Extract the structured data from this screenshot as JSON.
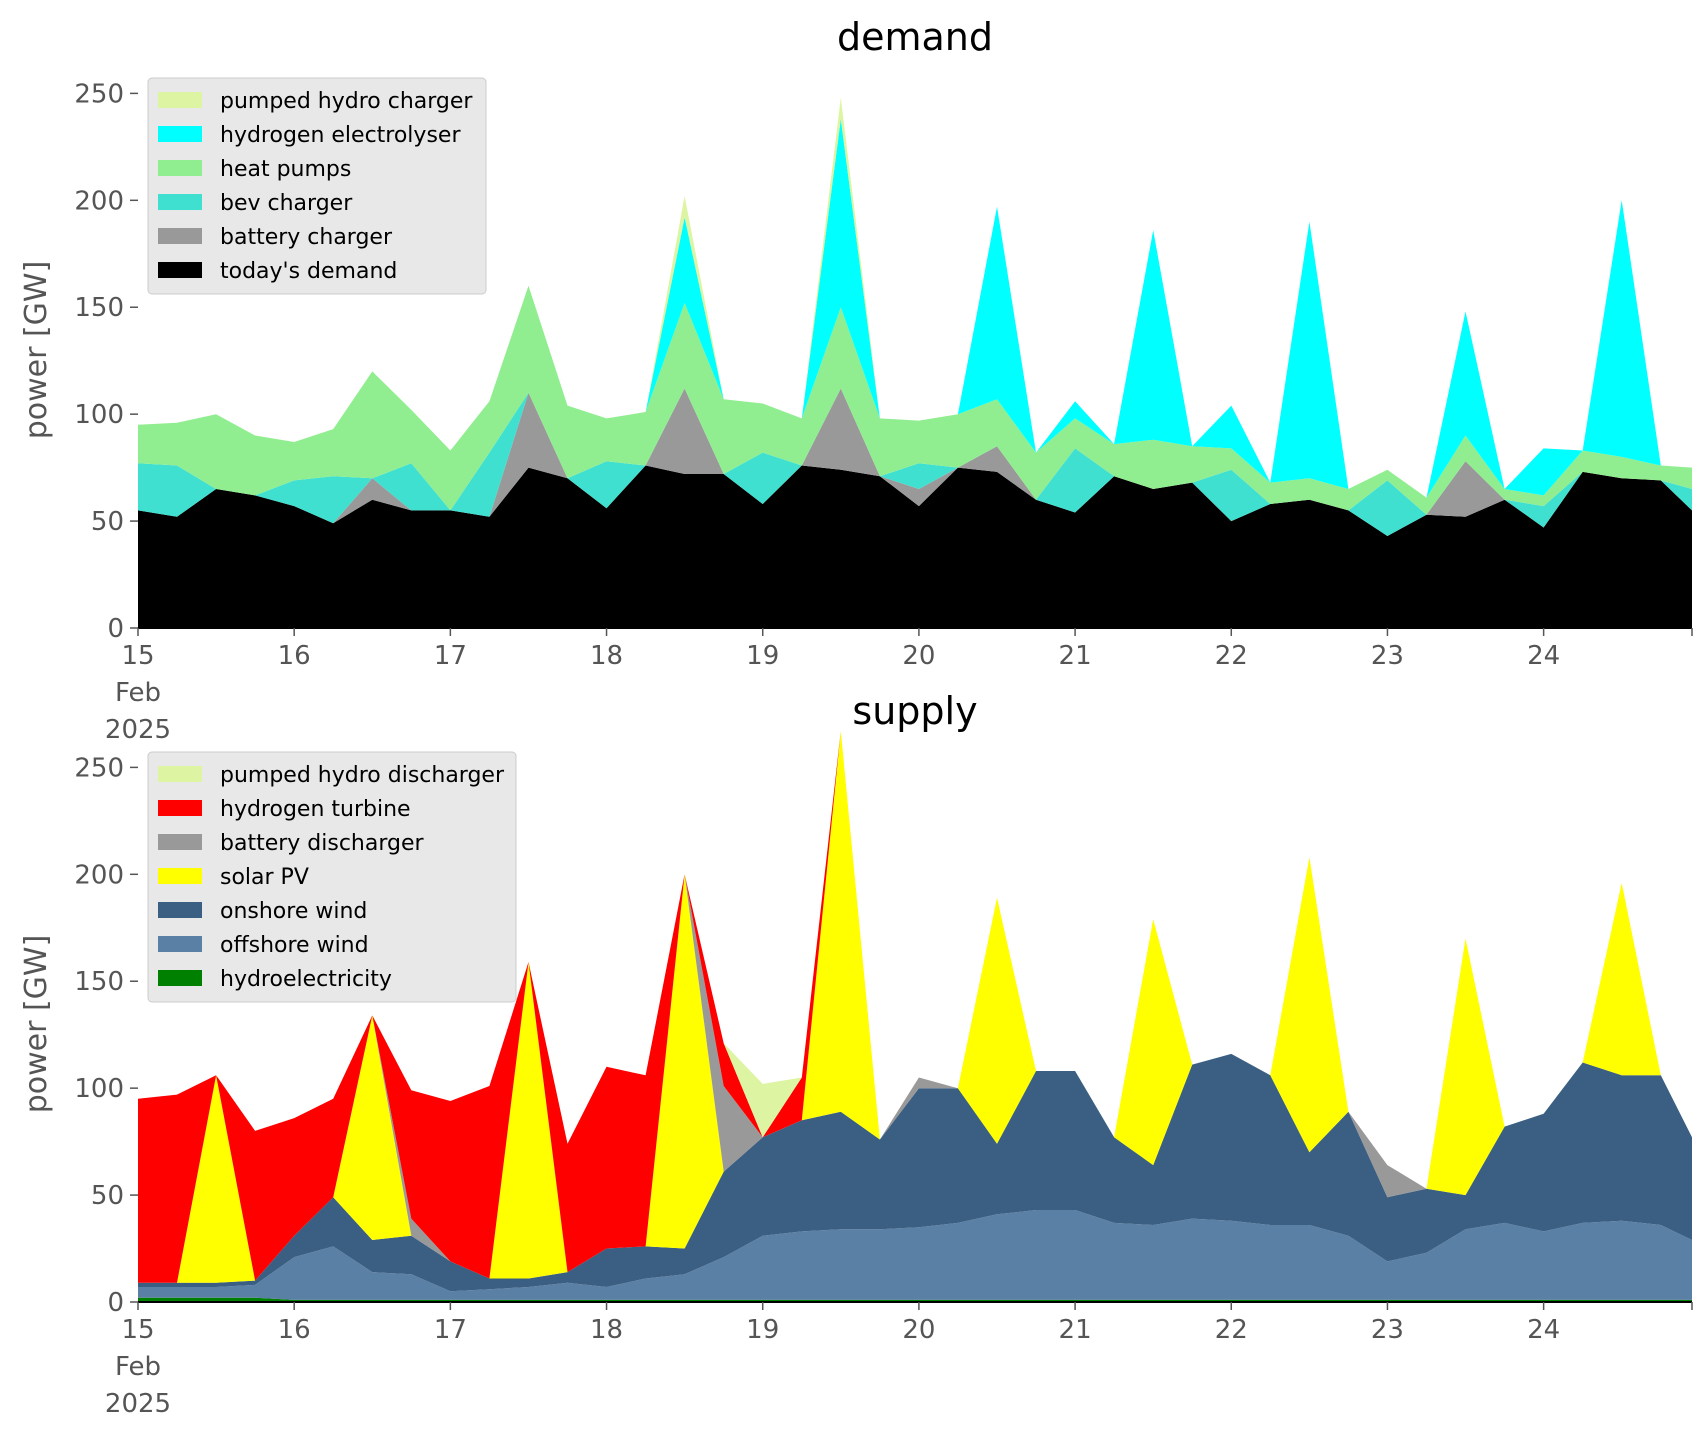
{
  "chart_data": [
    {
      "type": "area",
      "stacked": true,
      "title": "demand",
      "ylabel": "power [GW]",
      "xlabel": "",
      "ylim": [
        0,
        260
      ],
      "yticks": [
        0,
        50,
        100,
        150,
        200,
        250
      ],
      "xlim": [
        0,
        9.95
      ],
      "xticks": [
        {
          "x": 0,
          "label": "15\nFeb\n2025"
        },
        {
          "x": 1,
          "label": "16"
        },
        {
          "x": 2,
          "label": "17"
        },
        {
          "x": 3,
          "label": "18"
        },
        {
          "x": 4,
          "label": "19"
        },
        {
          "x": 5,
          "label": "20"
        },
        {
          "x": 6,
          "label": "21"
        },
        {
          "x": 7,
          "label": "22"
        },
        {
          "x": 8,
          "label": "23"
        },
        {
          "x": 9,
          "label": "24"
        }
      ],
      "grid": false,
      "legend_position": "top-left",
      "legend_order": [
        "pumped hydro charger",
        "hydrogen electrolyser",
        "heat pumps",
        "bev charger",
        "battery charger",
        "today's demand"
      ],
      "x_unit": "days since 15 Feb 2025",
      "x": [
        0,
        0.25,
        0.5,
        0.75,
        1,
        1.25,
        1.5,
        1.75,
        2,
        2.25,
        2.5,
        2.75,
        3,
        3.25,
        3.5,
        3.75,
        4,
        4.25,
        4.5,
        4.75,
        5,
        5.25,
        5.5,
        5.75,
        6,
        6.25,
        6.5,
        6.75,
        7,
        7.25,
        7.5,
        7.75,
        8,
        8.25,
        8.5,
        8.75,
        9,
        9.25,
        9.5,
        9.75,
        9.95
      ],
      "series": [
        {
          "name": "today's demand",
          "color": "#000000",
          "values": [
            55,
            52,
            65,
            62,
            57,
            49,
            60,
            55,
            55,
            52,
            75,
            70,
            56,
            76,
            72,
            72,
            58,
            76,
            74,
            71,
            57,
            75,
            73,
            60,
            54,
            71,
            65,
            68,
            50,
            58,
            60,
            55,
            43,
            53,
            52,
            60,
            47,
            73,
            70,
            69,
            55
          ]
        },
        {
          "name": "battery charger",
          "color": "#999999",
          "values": [
            0,
            0,
            0,
            0,
            0,
            0,
            10,
            0,
            0,
            0,
            35,
            0,
            0,
            0,
            40,
            0,
            0,
            0,
            38,
            0,
            8,
            0,
            12,
            0,
            0,
            0,
            0,
            0,
            0,
            0,
            0,
            0,
            0,
            0,
            26,
            0,
            0,
            0,
            0,
            0,
            0
          ]
        },
        {
          "name": "bev charger",
          "color": "#40E0D0",
          "values": [
            22,
            24,
            0,
            0,
            12,
            22,
            0,
            22,
            0,
            30,
            0,
            0,
            22,
            0,
            0,
            0,
            24,
            0,
            0,
            0,
            12,
            0,
            0,
            0,
            30,
            0,
            0,
            0,
            24,
            0,
            0,
            0,
            26,
            0,
            0,
            0,
            10,
            0,
            0,
            0,
            10
          ]
        },
        {
          "name": "heat pumps",
          "color": "#90EE90",
          "values": [
            18,
            20,
            35,
            28,
            18,
            22,
            50,
            25,
            28,
            24,
            50,
            34,
            20,
            25,
            40,
            35,
            23,
            22,
            38,
            27,
            20,
            25,
            22,
            22,
            14,
            15,
            23,
            17,
            10,
            10,
            10,
            10,
            5,
            8,
            12,
            5,
            5,
            10,
            10,
            7,
            10
          ]
        },
        {
          "name": "bev charger",
          "color": "#40E0D0",
          "values": [
            0,
            0,
            0,
            0,
            0,
            0,
            0,
            0,
            0,
            0,
            0,
            0,
            0,
            0,
            0,
            0,
            0,
            0,
            0,
            0,
            0,
            0,
            0,
            0,
            0,
            0,
            0,
            0,
            0,
            0,
            0,
            0,
            0,
            0,
            0,
            0,
            0,
            0,
            0,
            0,
            0
          ]
        },
        {
          "name": "hydrogen electrolyser",
          "color": "#00FFFF",
          "values": [
            0,
            0,
            0,
            0,
            0,
            0,
            0,
            0,
            0,
            0,
            0,
            0,
            0,
            0,
            40,
            0,
            0,
            0,
            88,
            0,
            0,
            0,
            90,
            0,
            8,
            0,
            98,
            0,
            20,
            0,
            120,
            0,
            0,
            0,
            58,
            0,
            22,
            0,
            120,
            0,
            0
          ]
        },
        {
          "name": "pumped hydro charger",
          "color": "#DDF5A2",
          "values": [
            0,
            0,
            0,
            0,
            0,
            0,
            0,
            0,
            0,
            0,
            0,
            0,
            0,
            0,
            10,
            0,
            0,
            0,
            10,
            0,
            0,
            0,
            0,
            0,
            0,
            0,
            0,
            0,
            0,
            0,
            0,
            0,
            0,
            0,
            0,
            0,
            0,
            0,
            0,
            0,
            0
          ]
        }
      ]
    },
    {
      "type": "area",
      "stacked": true,
      "title": "supply",
      "ylabel": "power [GW]",
      "xlabel": "",
      "ylim": [
        0,
        260
      ],
      "yticks": [
        0,
        50,
        100,
        150,
        200,
        250
      ],
      "xlim": [
        0,
        9.95
      ],
      "xticks": [
        {
          "x": 0,
          "label": "15\nFeb\n2025"
        },
        {
          "x": 1,
          "label": "16"
        },
        {
          "x": 2,
          "label": "17"
        },
        {
          "x": 3,
          "label": "18"
        },
        {
          "x": 4,
          "label": "19"
        },
        {
          "x": 5,
          "label": "20"
        },
        {
          "x": 6,
          "label": "21"
        },
        {
          "x": 7,
          "label": "22"
        },
        {
          "x": 8,
          "label": "23"
        },
        {
          "x": 9,
          "label": "24"
        }
      ],
      "grid": false,
      "legend_position": "top-left",
      "legend_order": [
        "pumped hydro discharger",
        "hydrogen turbine",
        "battery discharger",
        "solar PV",
        "onshore wind",
        "offshore wind",
        "hydroelectricity"
      ],
      "x_unit": "days since 15 Feb 2025",
      "x": [
        0,
        0.25,
        0.5,
        0.75,
        1,
        1.25,
        1.5,
        1.75,
        2,
        2.25,
        2.5,
        2.75,
        3,
        3.25,
        3.5,
        3.75,
        4,
        4.25,
        4.5,
        4.75,
        5,
        5.25,
        5.5,
        5.75,
        6,
        6.25,
        6.5,
        6.75,
        7,
        7.25,
        7.5,
        7.75,
        8,
        8.25,
        8.5,
        8.75,
        9,
        9.25,
        9.5,
        9.75,
        9.95
      ],
      "series": [
        {
          "name": "hydroelectricity",
          "color": "#008000",
          "values": [
            2,
            2,
            2,
            2,
            1,
            1,
            1,
            1,
            1,
            1,
            1,
            1,
            1,
            1,
            1,
            1,
            1,
            1,
            1,
            1,
            1,
            1,
            1,
            1,
            1,
            1,
            1,
            1,
            1,
            1,
            1,
            1,
            1,
            1,
            1,
            1,
            1,
            1,
            1,
            1,
            1
          ]
        },
        {
          "name": "offshore wind",
          "color": "#5B80A5",
          "values": [
            5,
            5,
            5,
            6,
            20,
            25,
            13,
            12,
            4,
            5,
            6,
            8,
            6,
            10,
            12,
            20,
            30,
            32,
            33,
            33,
            34,
            36,
            40,
            42,
            42,
            36,
            35,
            38,
            37,
            35,
            35,
            30,
            18,
            22,
            33,
            36,
            32,
            36,
            37,
            35,
            28
          ]
        },
        {
          "name": "onshore wind",
          "color": "#3B5F82",
          "values": [
            2,
            2,
            2,
            2,
            10,
            23,
            15,
            18,
            14,
            5,
            4,
            5,
            18,
            15,
            12,
            40,
            46,
            52,
            55,
            42,
            65,
            63,
            33,
            65,
            65,
            40,
            28,
            72,
            78,
            70,
            34,
            58,
            30,
            30,
            16,
            45,
            55,
            75,
            68,
            70,
            48
          ]
        },
        {
          "name": "solar PV",
          "color": "#FFFF00",
          "values": [
            0,
            0,
            97,
            0,
            0,
            0,
            105,
            0,
            0,
            0,
            148,
            0,
            0,
            0,
            175,
            0,
            0,
            0,
            178,
            0,
            0,
            0,
            115,
            0,
            0,
            0,
            115,
            0,
            0,
            0,
            138,
            0,
            0,
            0,
            120,
            0,
            0,
            0,
            90,
            0,
            0
          ]
        },
        {
          "name": "battery discharger",
          "color": "#999999",
          "values": [
            0,
            0,
            0,
            0,
            0,
            0,
            0,
            8,
            0,
            0,
            0,
            0,
            0,
            0,
            0,
            40,
            0,
            0,
            0,
            0,
            5,
            0,
            0,
            0,
            0,
            0,
            0,
            0,
            0,
            0,
            0,
            0,
            15,
            0,
            0,
            0,
            0,
            0,
            0,
            0,
            0
          ]
        },
        {
          "name": "hydrogen turbine",
          "color": "#FF0000",
          "values": [
            86,
            88,
            0,
            70,
            55,
            46,
            0,
            60,
            75,
            90,
            0,
            60,
            85,
            80,
            0,
            20,
            0,
            20,
            0,
            0,
            0,
            0,
            0,
            0,
            0,
            0,
            0,
            0,
            0,
            0,
            0,
            0,
            0,
            0,
            0,
            0,
            0,
            0,
            0,
            0,
            0
          ]
        },
        {
          "name": "pumped hydro discharger",
          "color": "#DDF5A2",
          "values": [
            0,
            0,
            0,
            0,
            0,
            0,
            0,
            0,
            0,
            0,
            0,
            0,
            0,
            0,
            0,
            0,
            25,
            0,
            0,
            0,
            0,
            0,
            0,
            0,
            0,
            0,
            0,
            0,
            0,
            0,
            0,
            0,
            0,
            0,
            0,
            0,
            0,
            0,
            0,
            0,
            0
          ]
        }
      ]
    }
  ]
}
